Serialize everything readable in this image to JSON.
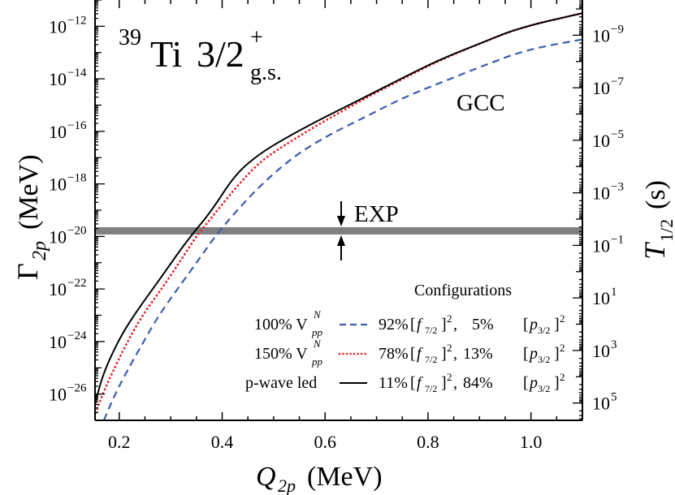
{
  "chart_data": {
    "type": "line",
    "title": "39Ti 3/2+ g.s.",
    "title_parts": {
      "mass": "39",
      "element": "Ti",
      "spin": "3/2",
      "parity": "+",
      "state": "g.s."
    },
    "xlabel": "Q2p (MeV)",
    "xlabel_parts": {
      "sym": "Q",
      "sub": "2p",
      "unit": "(MeV)"
    },
    "ylabel": "Γ2p (MeV)",
    "ylabel_parts": {
      "sym": "Γ",
      "sub": "2p",
      "unit": "(MeV)"
    },
    "y2label": "T1/2 (s)",
    "y2label_parts": {
      "sym": "T",
      "sub": "1/2",
      "unit": "(s)"
    },
    "xlim": [
      0.153,
      1.1
    ],
    "ylim_log10": [
      -27.0,
      -11.0
    ],
    "yscale": "log",
    "x_ticks": [
      "0.2",
      "0.4",
      "0.6",
      "0.8",
      "1.0"
    ],
    "x_tick_values": [
      0.2,
      0.4,
      0.6,
      0.8,
      1.0
    ],
    "y_ticks": [
      {
        "base": "10",
        "exp": "−12",
        "log": -12
      },
      {
        "base": "10",
        "exp": "−14",
        "log": -14
      },
      {
        "base": "10",
        "exp": "−16",
        "log": -16
      },
      {
        "base": "10",
        "exp": "−18",
        "log": -18
      },
      {
        "base": "10",
        "exp": "−20",
        "log": -20
      },
      {
        "base": "10",
        "exp": "−22",
        "log": -22
      },
      {
        "base": "10",
        "exp": "−24",
        "log": -24
      },
      {
        "base": "10",
        "exp": "−26",
        "log": -26
      }
    ],
    "y2_ticks": [
      {
        "base": "10",
        "exp": "−9",
        "log_gamma": -12.34
      },
      {
        "base": "10",
        "exp": "−7",
        "log_gamma": -14.34
      },
      {
        "base": "10",
        "exp": "−5",
        "log_gamma": -16.34
      },
      {
        "base": "10",
        "exp": "−3",
        "log_gamma": -18.34
      },
      {
        "base": "10",
        "exp": "−1",
        "log_gamma": -20.34
      },
      {
        "base": "10",
        "exp": "1",
        "log_gamma": -22.34
      },
      {
        "base": "10",
        "exp": "3",
        "log_gamma": -24.34
      },
      {
        "base": "10",
        "exp": "5",
        "log_gamma": -26.34
      }
    ],
    "grid": false,
    "legend_position": "lower right",
    "legend_title": "Configurations",
    "series": [
      {
        "name": "100% V_pp^N",
        "label_main": "100% V",
        "label_sup": "N",
        "label_sub": "pp",
        "config": "92% [f7/2]^2,   5% [p3/2]^2",
        "config_parts": {
          "a": "92%",
          "b": "5%"
        },
        "style": "dashed",
        "color": "#3a5db0",
        "x": [
          0.17,
          0.189,
          0.213,
          0.244,
          0.276,
          0.315,
          0.355,
          0.386,
          0.426,
          0.473,
          0.536,
          0.599,
          0.678,
          0.757,
          0.836,
          0.915,
          0.994,
          1.1
        ],
        "log10_y": [
          -27.0,
          -26.13,
          -25.2,
          -24.12,
          -23.03,
          -21.95,
          -20.87,
          -20.0,
          -19.07,
          -18.08,
          -17.0,
          -16.22,
          -15.45,
          -14.67,
          -14.06,
          -13.44,
          -12.88,
          -12.5
        ]
      },
      {
        "name": "150% V_pp^N",
        "label_main": "150% V",
        "label_sup": "N",
        "label_sub": "pp",
        "config": "78% [f7/2]^2, 13% [p3/2]^2",
        "config_parts": {
          "a": "78%",
          "b": "13%"
        },
        "style": "dotted",
        "color": "#e8242b",
        "x": [
          0.149,
          0.165,
          0.186,
          0.213,
          0.244,
          0.284,
          0.323,
          0.347,
          0.378,
          0.426,
          0.473,
          0.52,
          0.584,
          0.663,
          0.741,
          0.82,
          0.899,
          0.978,
          1.1
        ],
        "log10_y": [
          -27.0,
          -26.13,
          -25.2,
          -24.12,
          -23.03,
          -21.95,
          -20.81,
          -20.07,
          -19.32,
          -18.15,
          -17.16,
          -16.54,
          -15.77,
          -14.9,
          -14.1,
          -13.32,
          -12.67,
          -12.05,
          -11.5
        ]
      },
      {
        "name": "p-wave led",
        "label_main": "p-wave led",
        "config": "11% [f7/2]^2, 84% [p3/2]^2",
        "config_parts": {
          "a": "11%",
          "b": "84%"
        },
        "style": "solid",
        "color": "#000000",
        "x": [
          0.146,
          0.156,
          0.167,
          0.183,
          0.207,
          0.238,
          0.278,
          0.317,
          0.341,
          0.38,
          0.426,
          0.473,
          0.52,
          0.584,
          0.663,
          0.741,
          0.82,
          0.899,
          0.978,
          1.1
        ],
        "log10_y": [
          -27.0,
          -26.13,
          -25.36,
          -24.59,
          -23.66,
          -22.73,
          -21.65,
          -20.56,
          -19.94,
          -19.01,
          -17.62,
          -16.85,
          -16.29,
          -15.61,
          -14.84,
          -14.06,
          -13.29,
          -12.67,
          -12.05,
          -11.5
        ]
      }
    ],
    "annotations": [
      {
        "text": "GCC",
        "x": 0.82,
        "log10_y": -15.3
      },
      {
        "text": "EXP",
        "x": 0.63,
        "log10_y": -19.5,
        "band_log10": -19.8,
        "band_note": "horizontal gray band with arrows"
      }
    ],
    "exp_band": {
      "log10_center": -19.8,
      "color": "#808080"
    }
  }
}
